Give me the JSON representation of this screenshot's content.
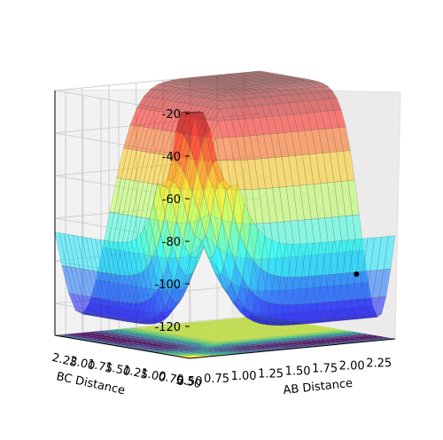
{
  "chart_data": {
    "type": "surface3d",
    "title": "",
    "xlabel": "AB Distance",
    "ylabel": "BC Distance",
    "zlabel": "",
    "x_ticks": [
      "0.50",
      "0.75",
      "1.00",
      "1.25",
      "1.50",
      "1.75",
      "2.00",
      "2.25"
    ],
    "y_ticks": [
      "0.50",
      "0.75",
      "1.00",
      "1.25",
      "1.50",
      "1.75",
      "2.00",
      "2.25"
    ],
    "z_ticks": [
      "-20",
      "-40",
      "-60",
      "-80",
      "-100",
      "-120"
    ],
    "xlim": [
      0.5,
      2.4
    ],
    "ylim": [
      0.5,
      2.4
    ],
    "zlim": [
      -135,
      -20
    ],
    "colormap_surface": "jet",
    "colormap_contour": "viridis",
    "marked_point": {
      "x": 2.2,
      "y": 0.74,
      "z": -105
    },
    "grid": true
  }
}
